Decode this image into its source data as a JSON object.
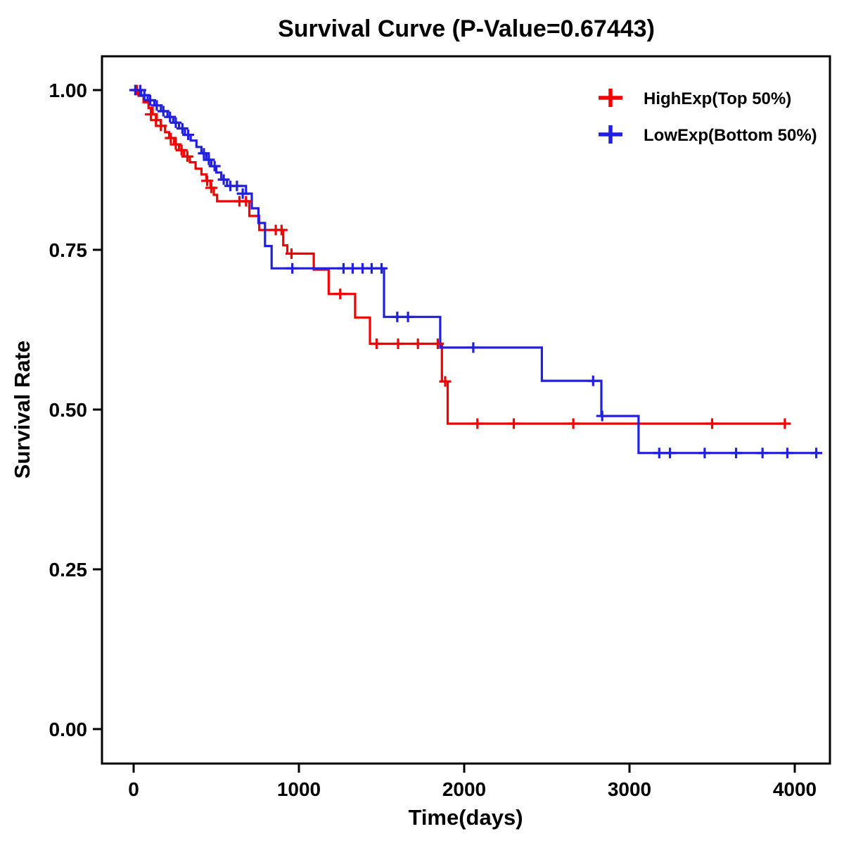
{
  "chart_data": {
    "type": "line",
    "subtype": "kaplan-meier-step",
    "title": "Survival Curve (P-Value=0.67443)",
    "p_value": "0.67443",
    "xlabel": "Time(days)",
    "ylabel": "Survival Rate",
    "xlim": [
      -200,
      4200
    ],
    "ylim": [
      -0.05,
      1.05
    ],
    "grid": false,
    "legend_position": "top-right",
    "x_ticks": [
      {
        "label": "0",
        "value": 0
      },
      {
        "label": "1000",
        "value": 1000
      },
      {
        "label": "2000",
        "value": 2000
      },
      {
        "label": "3000",
        "value": 3000
      },
      {
        "label": "4000",
        "value": 4000
      }
    ],
    "y_ticks": [
      {
        "label": "0.00",
        "value": 0.0
      },
      {
        "label": "0.25",
        "value": 0.25
      },
      {
        "label": "0.50",
        "value": 0.5
      },
      {
        "label": "0.75",
        "value": 0.75
      },
      {
        "label": "1.00",
        "value": 1.0
      }
    ],
    "series": [
      {
        "name": "HighExp(Top 50%)",
        "color": "#f40000",
        "steps": [
          [
            0,
            1.0
          ],
          [
            30,
            0.991
          ],
          [
            60,
            0.981
          ],
          [
            90,
            0.972
          ],
          [
            115,
            0.962
          ],
          [
            140,
            0.953
          ],
          [
            165,
            0.944
          ],
          [
            190,
            0.934
          ],
          [
            215,
            0.925
          ],
          [
            245,
            0.915
          ],
          [
            275,
            0.906
          ],
          [
            305,
            0.896
          ],
          [
            340,
            0.887
          ],
          [
            375,
            0.877
          ],
          [
            410,
            0.868
          ],
          [
            440,
            0.858
          ],
          [
            465,
            0.847
          ],
          [
            485,
            0.836
          ],
          [
            505,
            0.826
          ],
          [
            700,
            0.803
          ],
          [
            760,
            0.781
          ],
          [
            905,
            0.757
          ],
          [
            930,
            0.744
          ],
          [
            1090,
            0.719
          ],
          [
            1180,
            0.681
          ],
          [
            1340,
            0.644
          ],
          [
            1430,
            0.603
          ],
          [
            1865,
            0.544
          ],
          [
            1900,
            0.478
          ],
          [
            3950,
            0.478
          ]
        ],
        "censor_marks": [
          [
            20,
            1.0
          ],
          [
            105,
            0.962
          ],
          [
            135,
            0.953
          ],
          [
            165,
            0.944
          ],
          [
            225,
            0.925
          ],
          [
            255,
            0.915
          ],
          [
            290,
            0.906
          ],
          [
            325,
            0.896
          ],
          [
            445,
            0.858
          ],
          [
            470,
            0.847
          ],
          [
            640,
            0.826
          ],
          [
            680,
            0.826
          ],
          [
            860,
            0.781
          ],
          [
            895,
            0.781
          ],
          [
            955,
            0.744
          ],
          [
            1250,
            0.681
          ],
          [
            1470,
            0.603
          ],
          [
            1600,
            0.603
          ],
          [
            1720,
            0.603
          ],
          [
            1840,
            0.603
          ],
          [
            1885,
            0.544
          ],
          [
            2080,
            0.478
          ],
          [
            2300,
            0.478
          ],
          [
            2660,
            0.478
          ],
          [
            3500,
            0.478
          ],
          [
            3940,
            0.478
          ]
        ]
      },
      {
        "name": "LowExp(Bottom 50%)",
        "color": "#2020dd",
        "steps": [
          [
            0,
            1.0
          ],
          [
            45,
            0.992
          ],
          [
            85,
            0.984
          ],
          [
            125,
            0.976
          ],
          [
            165,
            0.967
          ],
          [
            205,
            0.958
          ],
          [
            240,
            0.949
          ],
          [
            275,
            0.94
          ],
          [
            310,
            0.93
          ],
          [
            345,
            0.921
          ],
          [
            380,
            0.911
          ],
          [
            410,
            0.901
          ],
          [
            440,
            0.891
          ],
          [
            470,
            0.881
          ],
          [
            500,
            0.871
          ],
          [
            530,
            0.86
          ],
          [
            565,
            0.85
          ],
          [
            680,
            0.838
          ],
          [
            715,
            0.815
          ],
          [
            755,
            0.792
          ],
          [
            795,
            0.756
          ],
          [
            835,
            0.721
          ],
          [
            1515,
            0.645
          ],
          [
            1855,
            0.597
          ],
          [
            2470,
            0.545
          ],
          [
            2830,
            0.49
          ],
          [
            3055,
            0.432
          ],
          [
            4150,
            0.432
          ]
        ],
        "censor_marks": [
          [
            10,
            1.0
          ],
          [
            40,
            1.0
          ],
          [
            65,
            0.992
          ],
          [
            100,
            0.984
          ],
          [
            140,
            0.976
          ],
          [
            180,
            0.967
          ],
          [
            220,
            0.958
          ],
          [
            255,
            0.949
          ],
          [
            295,
            0.94
          ],
          [
            330,
            0.93
          ],
          [
            425,
            0.901
          ],
          [
            455,
            0.891
          ],
          [
            490,
            0.881
          ],
          [
            545,
            0.86
          ],
          [
            585,
            0.85
          ],
          [
            625,
            0.85
          ],
          [
            660,
            0.838
          ],
          [
            960,
            0.721
          ],
          [
            1270,
            0.721
          ],
          [
            1325,
            0.721
          ],
          [
            1385,
            0.721
          ],
          [
            1440,
            0.721
          ],
          [
            1500,
            0.721
          ],
          [
            1595,
            0.645
          ],
          [
            1660,
            0.645
          ],
          [
            2055,
            0.597
          ],
          [
            2780,
            0.545
          ],
          [
            2835,
            0.49
          ],
          [
            3180,
            0.432
          ],
          [
            3245,
            0.432
          ],
          [
            3455,
            0.432
          ],
          [
            3645,
            0.432
          ],
          [
            3805,
            0.432
          ],
          [
            3955,
            0.432
          ],
          [
            4130,
            0.432
          ]
        ]
      }
    ]
  }
}
